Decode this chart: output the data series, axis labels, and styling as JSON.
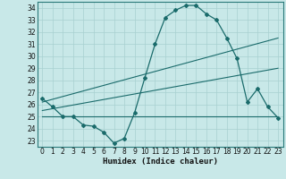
{
  "xlabel": "Humidex (Indice chaleur)",
  "bg_color": "#c8e8e8",
  "grid_color": "#a8d0d0",
  "line_color": "#1a6b6b",
  "spine_color": "#2a7a7a",
  "xlim": [
    -0.5,
    23.5
  ],
  "ylim": [
    22.5,
    34.5
  ],
  "yticks": [
    23,
    24,
    25,
    26,
    27,
    28,
    29,
    30,
    31,
    32,
    33,
    34
  ],
  "xticks": [
    0,
    1,
    2,
    3,
    4,
    5,
    6,
    7,
    8,
    9,
    10,
    11,
    12,
    13,
    14,
    15,
    16,
    17,
    18,
    19,
    20,
    21,
    22,
    23
  ],
  "curve1_x": [
    0,
    1,
    2,
    3,
    4,
    5,
    6,
    7,
    8,
    9,
    10,
    11,
    12,
    13,
    14,
    15,
    16,
    17,
    18,
    19,
    20,
    21,
    22,
    23
  ],
  "curve1_y": [
    26.5,
    25.8,
    25.0,
    25.0,
    24.3,
    24.2,
    23.7,
    22.8,
    23.2,
    25.3,
    28.2,
    31.0,
    33.2,
    33.8,
    34.2,
    34.2,
    33.5,
    33.0,
    31.5,
    29.8,
    26.2,
    27.3,
    25.8,
    24.9
  ],
  "curve2_x": [
    0,
    23
  ],
  "curve2_y": [
    25.5,
    29.0
  ],
  "curve3_x": [
    0,
    23
  ],
  "curve3_y": [
    26.2,
    31.5
  ],
  "curve4_x": [
    0,
    23
  ],
  "curve4_y": [
    25.0,
    25.0
  ],
  "tick_fontsize": 5.5,
  "xlabel_fontsize": 6.5
}
